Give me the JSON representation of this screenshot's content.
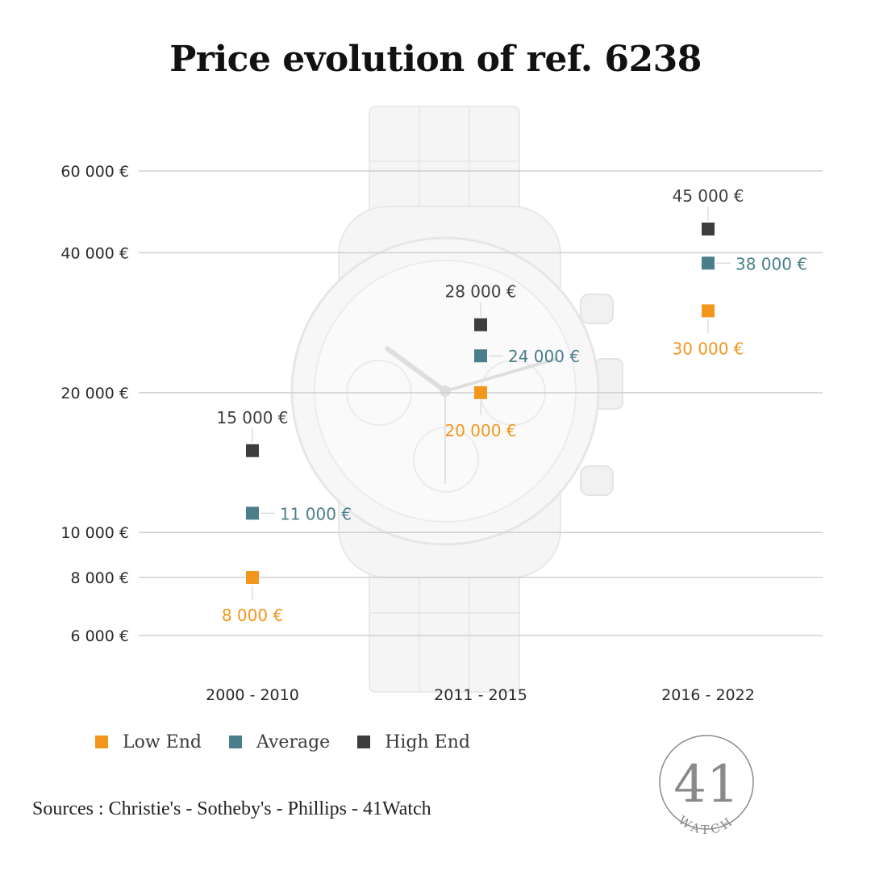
{
  "title": "Price evolution of ref. 6238",
  "sources": "Sources : Christie's - Sotheby's - Phillips - 41Watch",
  "logo": {
    "number": "41",
    "word": "WATCH"
  },
  "colors": {
    "low": "#F3961C",
    "average": "#4A7E8C",
    "high": "#3D3D3D",
    "grid": "#CFCFCF"
  },
  "chart_data": {
    "type": "scatter",
    "title": "Price evolution of ref. 6238",
    "categories": [
      "2000 - 2010",
      "2011 - 2015",
      "2016 - 2022"
    ],
    "y_scale": "log",
    "y_ticks": [
      6000,
      8000,
      10000,
      20000,
      40000,
      60000
    ],
    "y_tick_labels": [
      "6 000 €",
      "8 000 €",
      "10 000 €",
      "20 000 €",
      "40 000 €",
      "60 000 €"
    ],
    "series": [
      {
        "key": "low",
        "name": "Low End",
        "values": [
          8000,
          20000,
          30000
        ],
        "labels": [
          "8 000 €",
          "20 000 €",
          "30 000 €"
        ]
      },
      {
        "key": "average",
        "name": "Average",
        "values": [
          11000,
          24000,
          38000
        ],
        "labels": [
          "11 000 €",
          "24 000 €",
          "38 000 €"
        ]
      },
      {
        "key": "high",
        "name": "High End",
        "values": [
          15000,
          28000,
          45000
        ],
        "labels": [
          "15 000 €",
          "28 000 €",
          "45 000 €"
        ]
      }
    ],
    "legend_position": "bottom-left",
    "grid": true
  }
}
